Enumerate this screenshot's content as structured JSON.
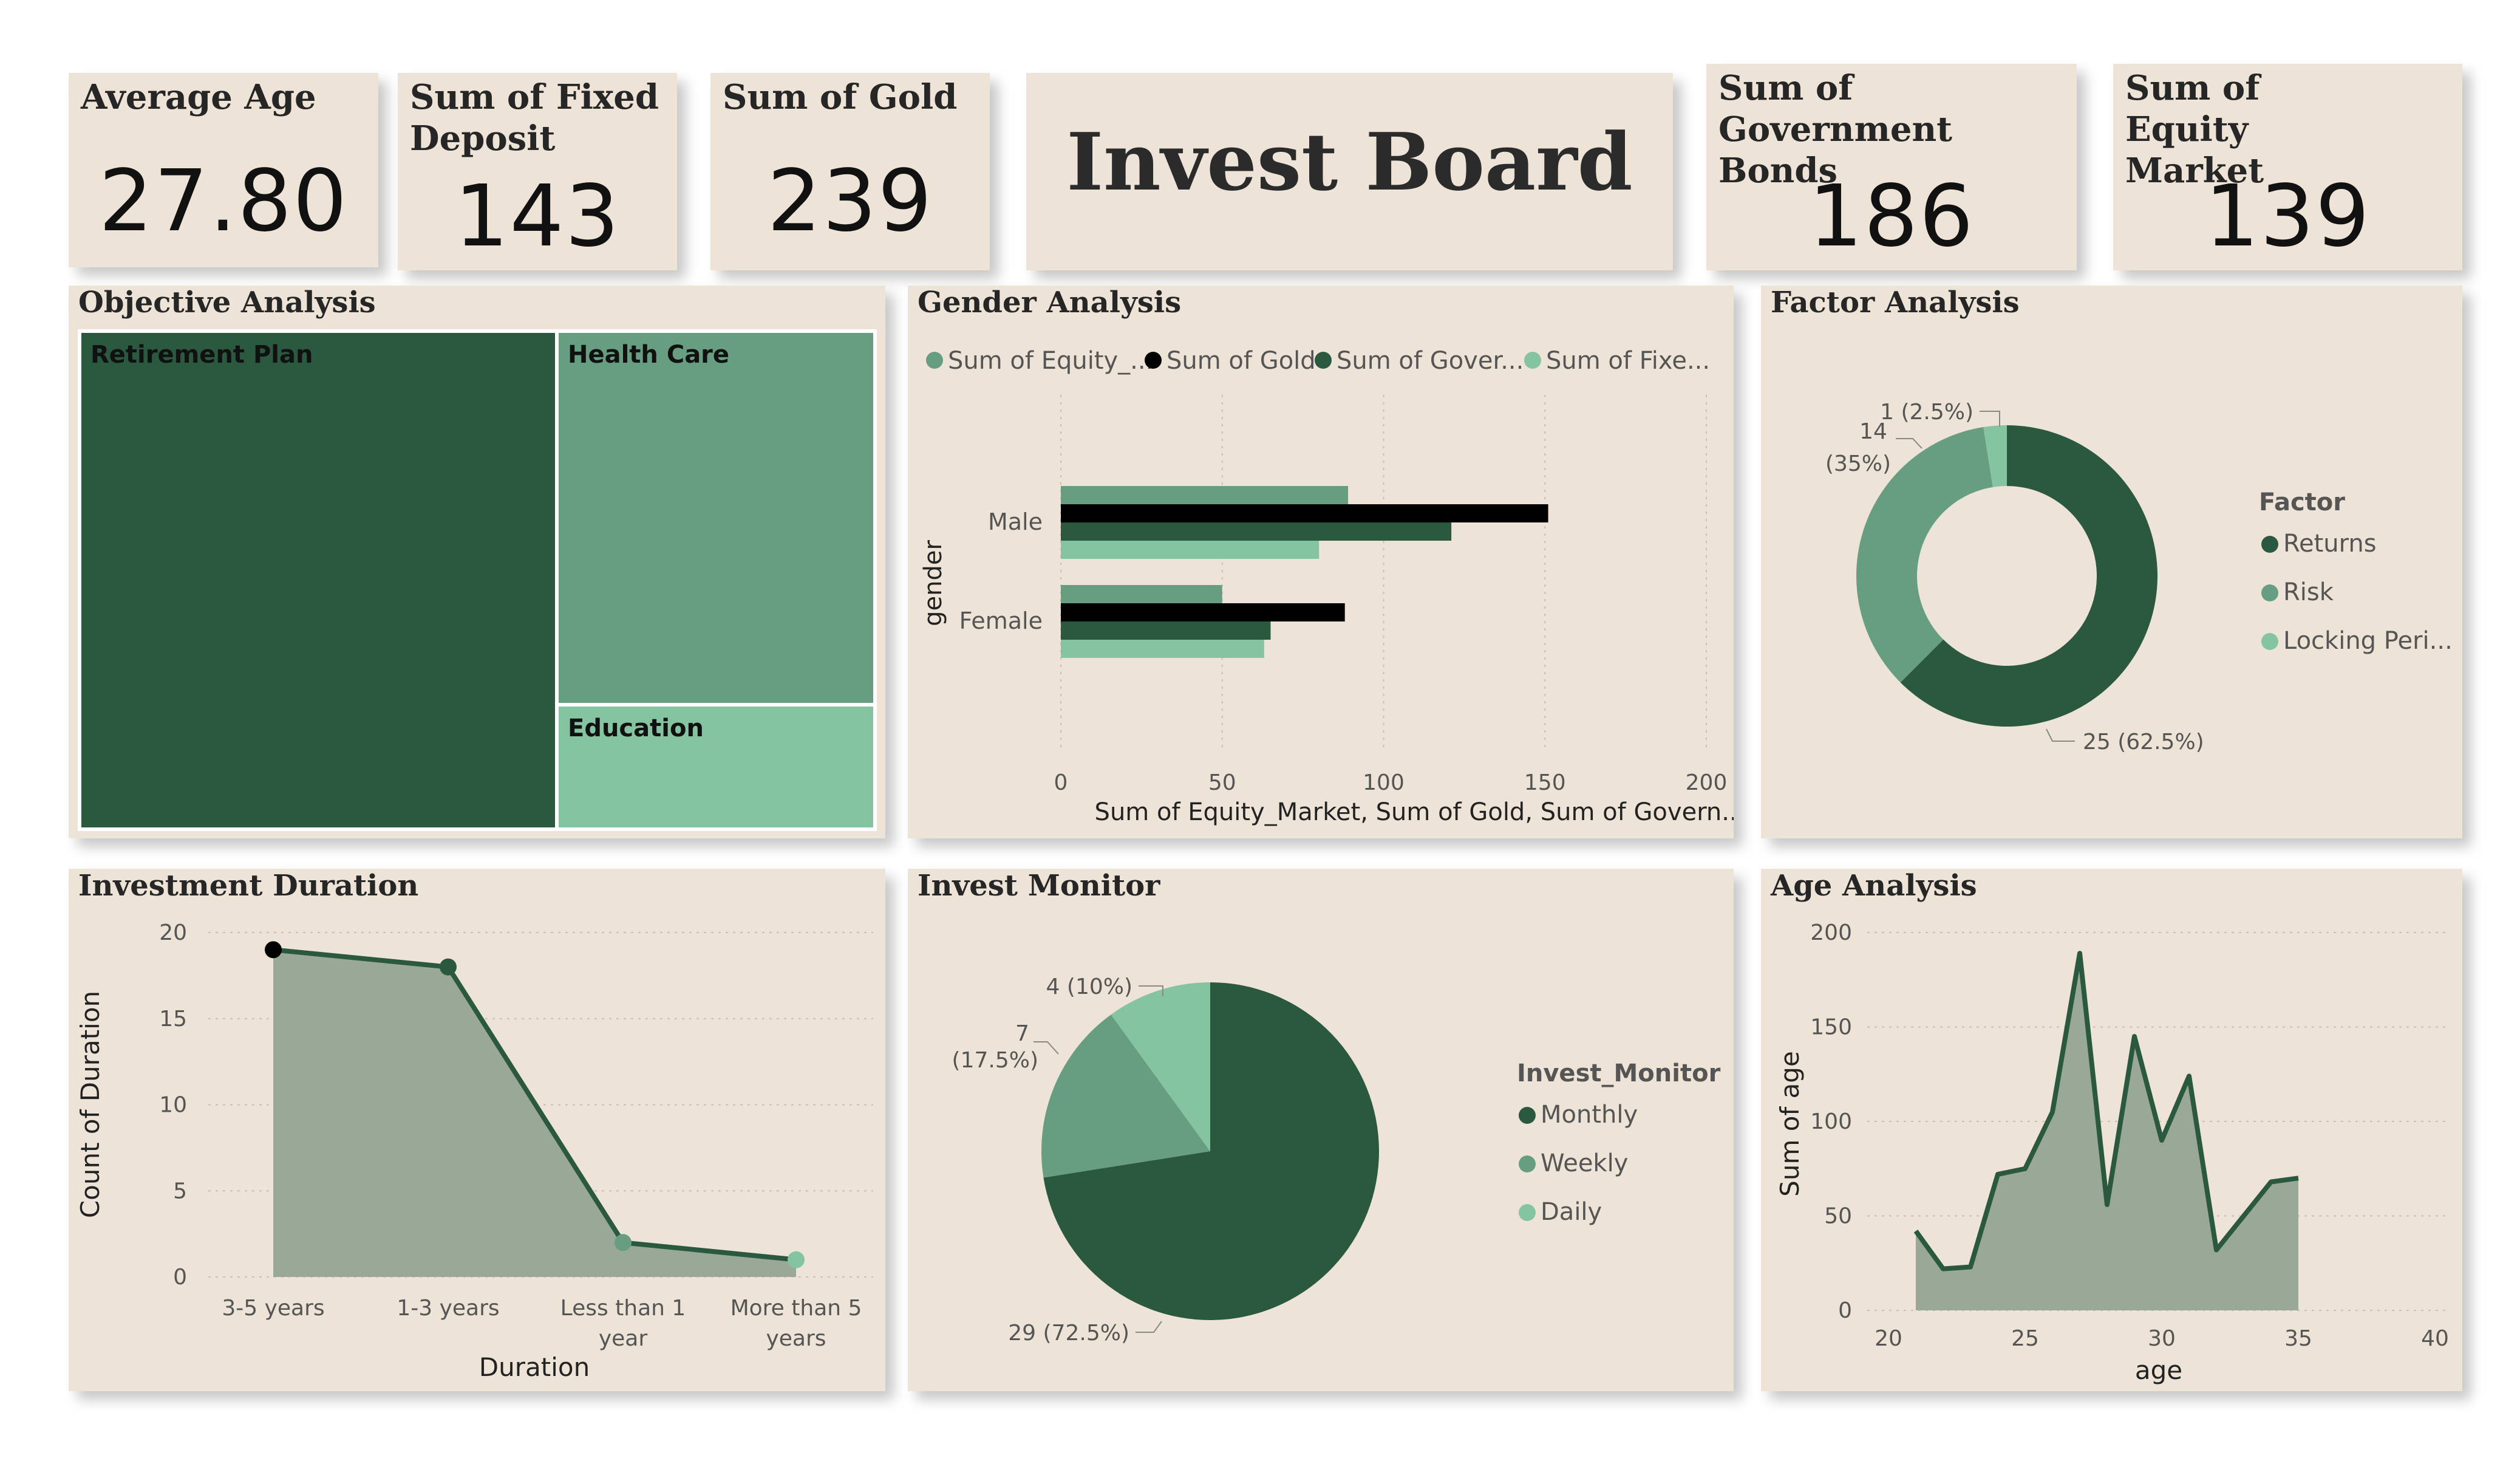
{
  "dashboard": {
    "title": "Invest Board"
  },
  "kpis": [
    {
      "label": "Average Age",
      "value": "27.80"
    },
    {
      "label": "Sum of Fixed Deposit",
      "value": "143"
    },
    {
      "label": "Sum of Gold",
      "value": "239"
    },
    {
      "label": "Sum of Government Bonds",
      "value": "186"
    },
    {
      "label": "Sum of Equity Market",
      "value": "139"
    }
  ],
  "colors": {
    "dark": "#2a5940",
    "mid": "#679e82",
    "light": "#85c4a0",
    "black": "#000000",
    "area": "#9aa997",
    "bg": "#ede3d6"
  },
  "chart_data": [
    {
      "type": "treemap",
      "title": "Objective Analysis",
      "categories": [
        "Retirement Plan",
        "Health Care",
        "Education"
      ],
      "values": [
        24,
        12,
        4
      ]
    },
    {
      "type": "bar",
      "orientation": "horizontal",
      "title": "Gender Analysis",
      "categories": [
        "Male",
        "Female"
      ],
      "series": [
        {
          "name": "Sum of Equity_...",
          "values": [
            89,
            50
          ]
        },
        {
          "name": "Sum of Gold",
          "values": [
            151,
            88
          ]
        },
        {
          "name": "Sum of Gover...",
          "values": [
            121,
            65
          ]
        },
        {
          "name": "Sum of Fixe...",
          "values": [
            80,
            63
          ]
        }
      ],
      "xlabel": "Sum of Equity_Market, Sum of Gold, Sum of Govern...",
      "ylabel": "gender",
      "xlim": [
        0,
        200
      ],
      "xticks": [
        "0",
        "50",
        "100",
        "150",
        "200"
      ]
    },
    {
      "type": "donut",
      "title": "Factor Analysis",
      "legend_title": "Factor",
      "categories": [
        "Returns",
        "Risk",
        "Locking Peri..."
      ],
      "values": [
        25,
        14,
        1
      ],
      "labels": [
        "25 (62.5%)",
        "14",
        "(35%)",
        "1 (2.5%)"
      ]
    },
    {
      "type": "area",
      "title": "Investment Duration",
      "categories": [
        "3-5 years",
        "1-3 years",
        "Less than 1",
        "More than 5"
      ],
      "category_line2": [
        "",
        "",
        "year",
        "years"
      ],
      "values": [
        19,
        18,
        2,
        1
      ],
      "xlabel": "Duration",
      "ylabel": "Count of Duration",
      "ylim": [
        0,
        20
      ],
      "yticks": [
        "0",
        "5",
        "10",
        "15",
        "20"
      ]
    },
    {
      "type": "pie",
      "title": "Invest Monitor",
      "legend_title": "Invest_Monitor",
      "categories": [
        "Monthly",
        "Weekly",
        "Daily"
      ],
      "values": [
        29,
        7,
        4
      ],
      "labels": [
        "29 (72.5%)",
        "7",
        "(17.5%)",
        "4 (10%)"
      ]
    },
    {
      "type": "area",
      "title": "Age Analysis",
      "x": [
        21,
        22,
        23,
        24,
        25,
        26,
        27,
        28,
        29,
        30,
        31,
        32,
        33,
        34,
        35
      ],
      "values": [
        42,
        22,
        23,
        72,
        75,
        105,
        189,
        56,
        145,
        90,
        124,
        32,
        50,
        68,
        70
      ],
      "xlabel": "age",
      "ylabel": "Sum of age",
      "xlim": [
        20,
        40
      ],
      "ylim": [
        0,
        200
      ],
      "xticks": [
        "20",
        "25",
        "30",
        "35",
        "40"
      ],
      "yticks": [
        "0",
        "50",
        "100",
        "150",
        "200"
      ]
    }
  ]
}
